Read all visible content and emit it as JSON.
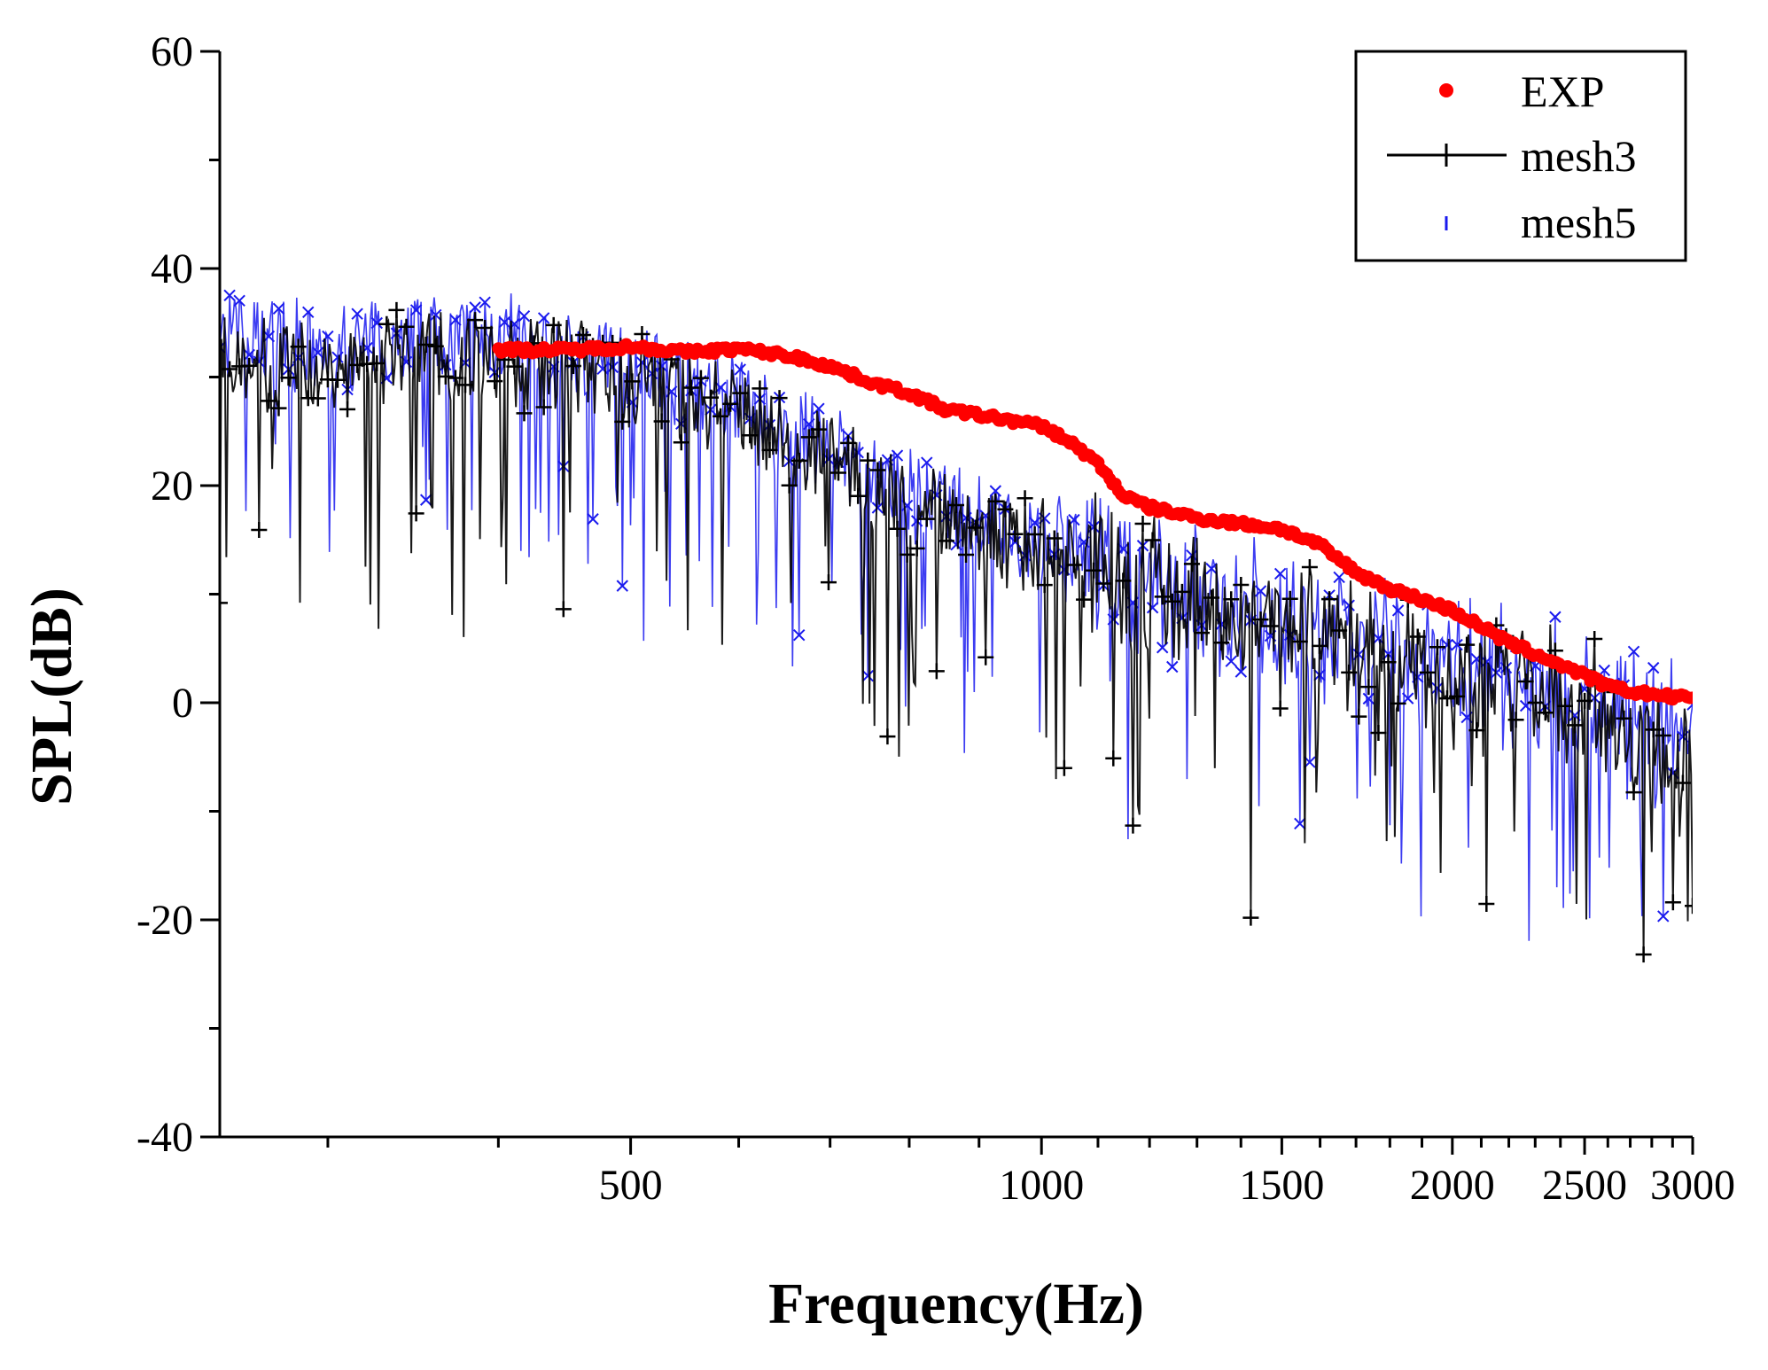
{
  "chart_data": {
    "type": "line",
    "xscale": "log",
    "xlabel": "Frequency(Hz)",
    "ylabel": "SPL(dB)",
    "xlim": [
      250,
      3000
    ],
    "ylim": [
      -40,
      60
    ],
    "xticks": [
      500,
      1000,
      1500,
      2000,
      2500,
      3000
    ],
    "xtick_labels": [
      "500",
      "1000",
      "1500",
      "2000",
      "2500",
      "3000"
    ],
    "yticks": [
      -40,
      -20,
      0,
      20,
      40,
      60
    ],
    "ytick_labels": [
      "-40",
      "-20",
      "0",
      "20",
      "40",
      "60"
    ],
    "legend_position": "top-right",
    "colors": {
      "exp": "#ff0000",
      "mesh3": "#000000",
      "mesh5": "#1a1aee"
    },
    "series": [
      {
        "name": "EXP",
        "style": "dots",
        "x": [
          400,
          450,
          500,
          550,
          600,
          650,
          700,
          750,
          800,
          850,
          900,
          950,
          1000,
          1050,
          1100,
          1150,
          1200,
          1300,
          1400,
          1500,
          1600,
          1700,
          1800,
          1900,
          2000,
          2100,
          2200,
          2300,
          2400,
          2500,
          2600,
          2700,
          2800,
          2900,
          3000
        ],
        "values": [
          32.5,
          32.5,
          32.8,
          32.3,
          32.6,
          32.0,
          31.0,
          29.5,
          28.5,
          27.0,
          26.5,
          26.0,
          25.5,
          24.0,
          22.0,
          19.0,
          18.0,
          17.0,
          16.5,
          16.0,
          14.5,
          12.0,
          10.5,
          9.5,
          8.5,
          7.0,
          5.5,
          4.5,
          3.5,
          2.5,
          1.5,
          1.0,
          0.8,
          0.5,
          0.5
        ]
      },
      {
        "name": "mesh3",
        "style": "line-plus",
        "x": [
          250,
          300,
          350,
          400,
          450,
          500,
          550,
          600,
          650,
          700,
          750,
          800,
          850,
          900,
          950,
          1000,
          1100,
          1200,
          1300,
          1400,
          1500,
          1600,
          1700,
          1800,
          1900,
          2000,
          2200,
          2400,
          2600,
          2800,
          3000
        ],
        "values": [
          32,
          30,
          33,
          31,
          31,
          30,
          28,
          27,
          24,
          22,
          20,
          18,
          17,
          16,
          15,
          14,
          12,
          10,
          9,
          8,
          7,
          6,
          5,
          4,
          3,
          2,
          1,
          0,
          -2,
          -4,
          -5
        ]
      },
      {
        "name": "mesh5",
        "style": "markers",
        "x": [
          250,
          300,
          350,
          400,
          450,
          500,
          550,
          600,
          650,
          700,
          750,
          800,
          850,
          900,
          950,
          1000,
          1100,
          1200,
          1300,
          1400,
          1500,
          1600,
          1700,
          1800,
          1900,
          2000,
          2200,
          2400,
          2600,
          2800,
          3000
        ],
        "values": [
          34,
          32,
          34,
          33,
          32,
          31,
          29,
          28,
          25,
          23,
          21,
          19,
          18,
          17,
          16,
          15,
          13,
          11,
          10,
          9,
          8,
          7,
          6,
          5,
          4,
          3,
          2,
          1,
          -1,
          -2,
          -3
        ]
      }
    ]
  }
}
